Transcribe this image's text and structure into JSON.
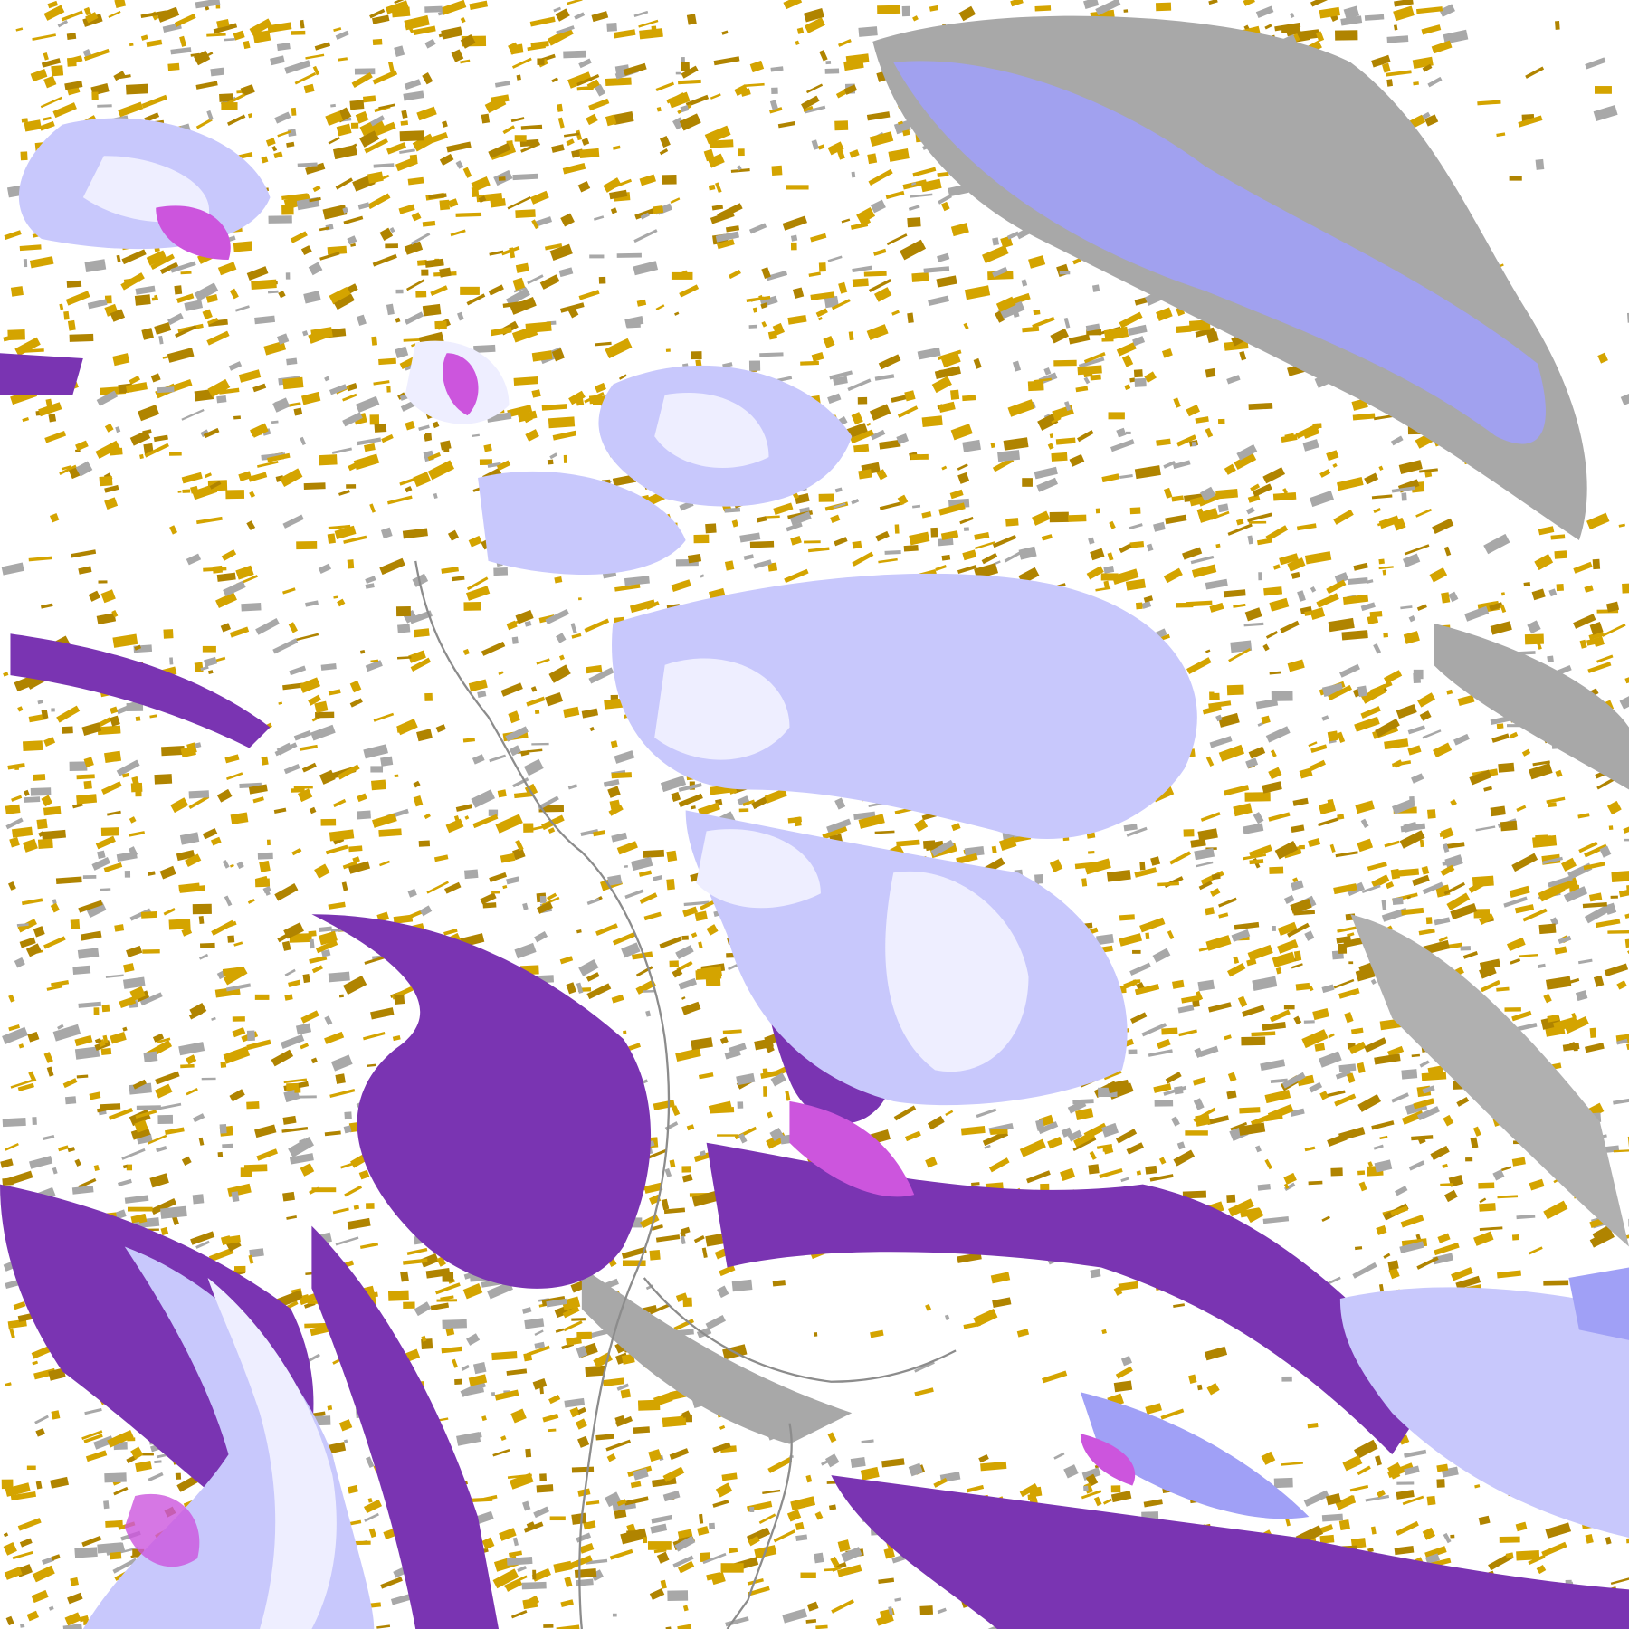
{
  "image": {
    "kind": "satellite cloud-classification composite",
    "palette": {
      "background": "#ffffff",
      "low_cloud_gold": "#d4a400",
      "low_cloud_dark_gold": "#b08400",
      "deep_purple": "#7a34b2",
      "magenta": "#cc55dd",
      "periwinkle": "#a0a0f6",
      "lavender": "#c8c8fc",
      "pale_lavender": "#eeeeff",
      "gray": "#a8a8a8",
      "coastline": "#8c8c8c"
    }
  }
}
